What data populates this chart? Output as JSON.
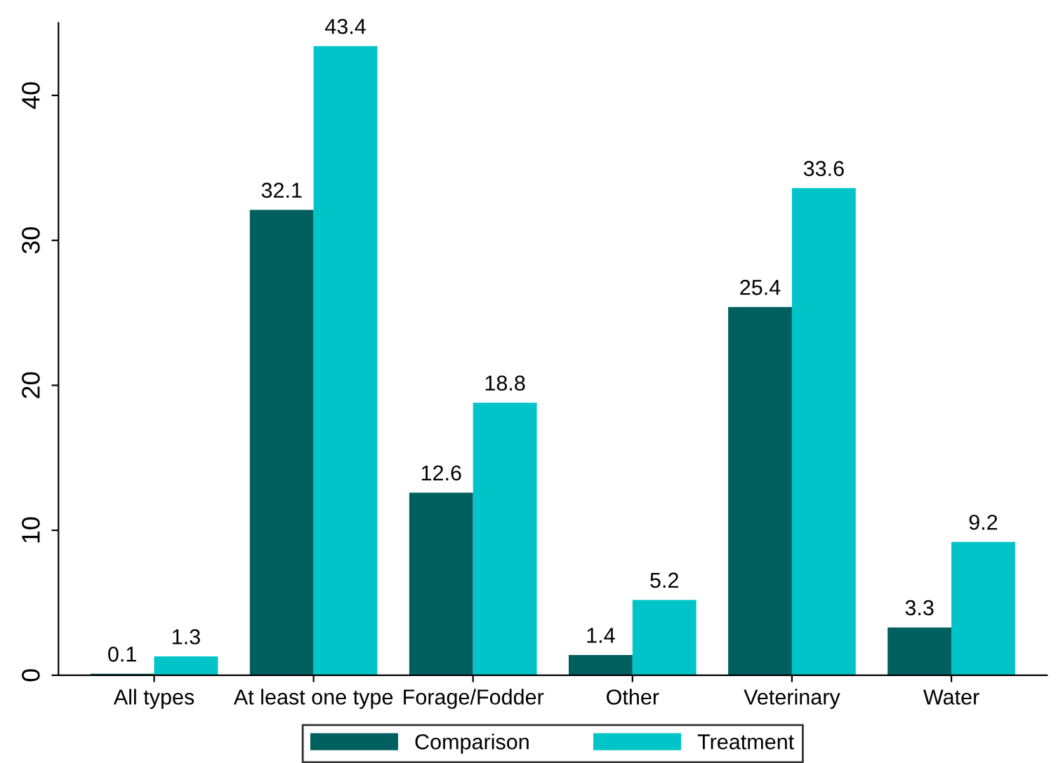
{
  "chart_data": {
    "type": "bar",
    "categories": [
      "All types",
      "At least one type",
      "Forage/Fodder",
      "Other",
      "Veterinary",
      "Water"
    ],
    "series": [
      {
        "name": "Comparison",
        "color": "#006060",
        "values": [
          0.1,
          32.1,
          12.6,
          1.4,
          25.4,
          3.3
        ]
      },
      {
        "name": "Treatment",
        "color": "#00c4c8",
        "values": [
          1.3,
          43.4,
          18.8,
          5.2,
          33.6,
          9.2
        ]
      }
    ],
    "ylim": [
      0,
      45
    ],
    "yticks": [
      0,
      10,
      20,
      30,
      40
    ],
    "grid": false,
    "legend": "bottom",
    "data_labels": true
  }
}
